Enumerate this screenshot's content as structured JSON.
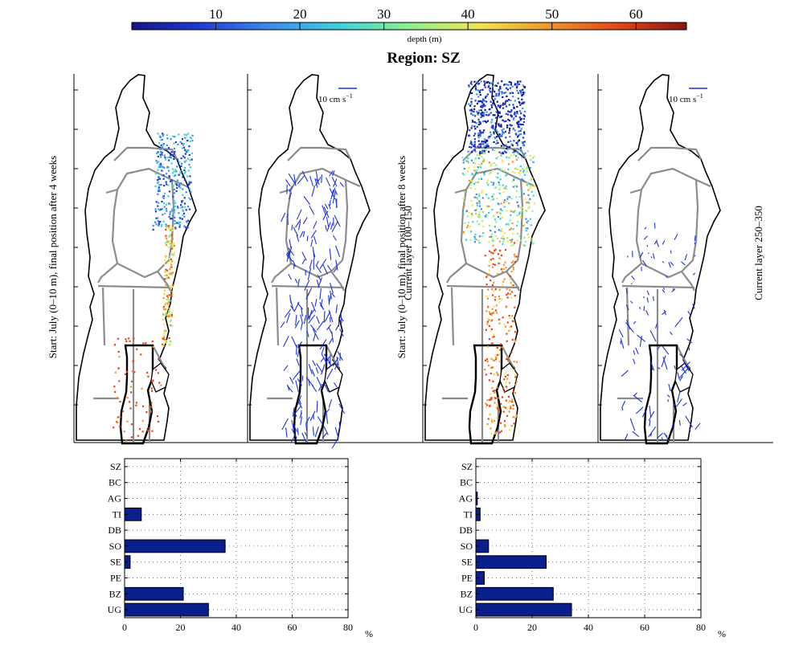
{
  "colorbar": {
    "label": "depth (m)",
    "ticks": [
      10,
      20,
      30,
      40,
      50,
      60
    ],
    "range": [
      0,
      66
    ],
    "colors": [
      "#14148c",
      "#1e3cd8",
      "#3c8cf0",
      "#3cd2dc",
      "#8cf08c",
      "#f0e650",
      "#f09628",
      "#e64614",
      "#8c1414"
    ]
  },
  "title": "Region: SZ",
  "maps": [
    {
      "kind": "particles",
      "label": "Start: July (0–10 m), final position after 4 weeks"
    },
    {
      "kind": "currents",
      "label": "Current layer 100–150",
      "scale_label": "10 cm s",
      "scale_sup": "−1"
    },
    {
      "kind": "particles",
      "label": "Start: July (0–10 m), final position after 8 weeks"
    },
    {
      "kind": "currents",
      "label": "Current layer 250–350",
      "scale_label": "10 cm s",
      "scale_sup": "−1"
    }
  ],
  "chart_data": [
    {
      "type": "bar",
      "orientation": "horizontal",
      "categories": [
        "SZ",
        "BC",
        "AG",
        "TI",
        "DB",
        "SO",
        "SE",
        "PE",
        "BZ",
        "UG"
      ],
      "values": [
        0,
        0,
        0,
        6,
        0,
        36,
        2,
        0,
        21,
        30
      ],
      "xlim": [
        0,
        80
      ],
      "xticks": [
        0,
        20,
        40,
        60,
        80
      ],
      "xlabel": "%",
      "grid": true,
      "bar_color": "#0a1e8c"
    },
    {
      "type": "bar",
      "orientation": "horizontal",
      "categories": [
        "SZ",
        "BC",
        "AG",
        "TI",
        "DB",
        "SO",
        "SE",
        "PE",
        "BZ",
        "UG"
      ],
      "values": [
        0,
        0,
        0.5,
        1.5,
        0,
        4.5,
        25,
        3,
        27.5,
        34
      ],
      "xlim": [
        0,
        80
      ],
      "xticks": [
        0,
        20,
        40,
        60,
        80
      ],
      "xlabel": "%",
      "grid": true,
      "bar_color": "#0a1e8c"
    }
  ]
}
